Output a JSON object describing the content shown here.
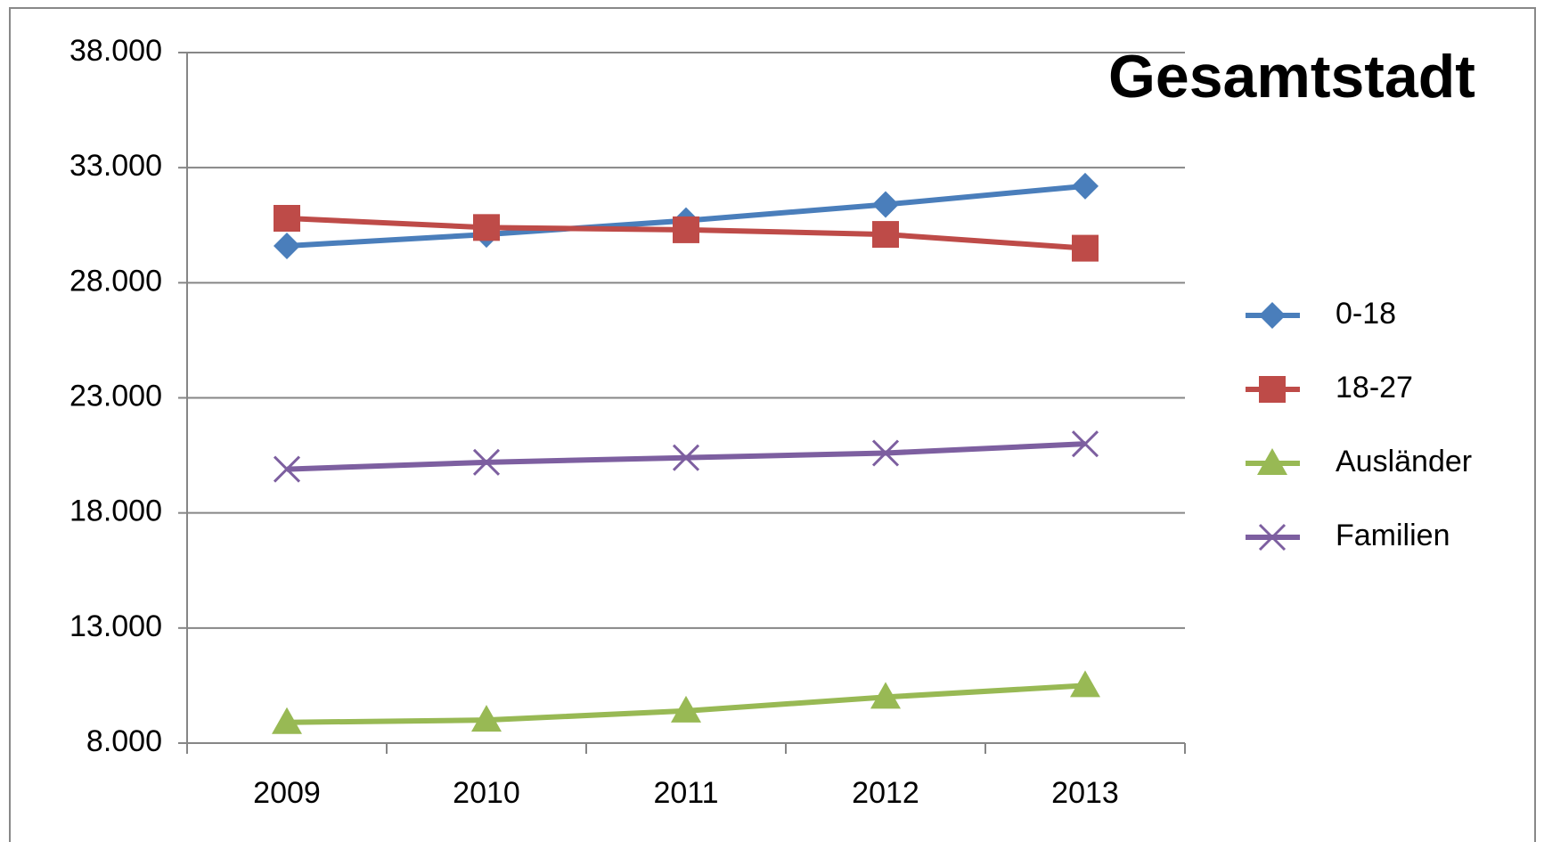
{
  "chart_data": {
    "type": "line",
    "title": "Gesamtstadt",
    "categories": [
      "2009",
      "2010",
      "2011",
      "2012",
      "2013"
    ],
    "series": [
      {
        "name": "0-18",
        "color": "#4a7ebb",
        "marker": "diamond",
        "values": [
          29600,
          30100,
          30700,
          31400,
          32200
        ]
      },
      {
        "name": "18-27",
        "color": "#be4b48",
        "marker": "square",
        "values": [
          30800,
          30400,
          30300,
          30100,
          29500
        ]
      },
      {
        "name": "Ausländer",
        "color": "#98b954",
        "marker": "triangle",
        "values": [
          8900,
          9000,
          9400,
          10000,
          10500
        ]
      },
      {
        "name": "Familien",
        "color": "#7d5fa0",
        "marker": "x",
        "values": [
          19900,
          20200,
          20400,
          20600,
          21000
        ]
      }
    ],
    "ylim": [
      8000,
      38000
    ],
    "yticks": [
      {
        "value": 8000,
        "label": "8.000"
      },
      {
        "value": 13000,
        "label": "13.000"
      },
      {
        "value": 18000,
        "label": "18.000"
      },
      {
        "value": 23000,
        "label": "23.000"
      },
      {
        "value": 28000,
        "label": "28.000"
      },
      {
        "value": 33000,
        "label": "33.000"
      },
      {
        "value": 38000,
        "label": "38.000"
      }
    ],
    "grid": true,
    "legend": "right"
  }
}
